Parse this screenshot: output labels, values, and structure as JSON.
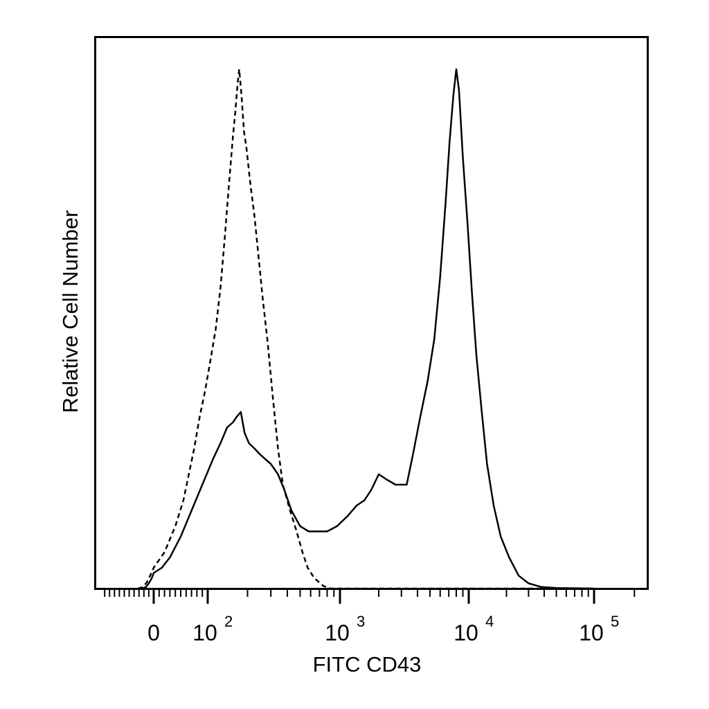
{
  "chart_data": {
    "type": "line",
    "title": "",
    "xlabel": "FITC CD43",
    "ylabel": "Relative Cell Number",
    "x_scale": "biexponential",
    "x_ticks": [
      {
        "value": 0,
        "label": "0"
      },
      {
        "value": 100,
        "label": "10",
        "exp": "2"
      },
      {
        "value": 1000,
        "label": "10",
        "exp": "3"
      },
      {
        "value": 10000,
        "label": "10",
        "exp": "4"
      },
      {
        "value": 100000,
        "label": "10",
        "exp": "5"
      }
    ],
    "y_ticks": [],
    "grid": false,
    "legend": "none",
    "ylim": [
      0,
      100
    ],
    "series": [
      {
        "style": "dashed",
        "points": [
          [
            -80,
            0
          ],
          [
            -55,
            0.3
          ],
          [
            -35,
            1.2
          ],
          [
            -18,
            2.5
          ],
          [
            0,
            4
          ],
          [
            20,
            7
          ],
          [
            40,
            12
          ],
          [
            55,
            17
          ],
          [
            65,
            22
          ],
          [
            75,
            27
          ],
          [
            85,
            33
          ],
          [
            95,
            38
          ],
          [
            105,
            44
          ],
          [
            115,
            50
          ],
          [
            125,
            58
          ],
          [
            135,
            68
          ],
          [
            145,
            78
          ],
          [
            155,
            87
          ],
          [
            162,
            92
          ],
          [
            168,
            97
          ],
          [
            173,
            100
          ],
          [
            180,
            95
          ],
          [
            188,
            88
          ],
          [
            196,
            85
          ],
          [
            210,
            78
          ],
          [
            225,
            72
          ],
          [
            240,
            65
          ],
          [
            260,
            56
          ],
          [
            285,
            47
          ],
          [
            310,
            37
          ],
          [
            340,
            27
          ],
          [
            370,
            20
          ],
          [
            420,
            15
          ],
          [
            470,
            11
          ],
          [
            520,
            7
          ],
          [
            570,
            4
          ],
          [
            640,
            2
          ],
          [
            750,
            0.5
          ],
          [
            850,
            0
          ],
          [
            100000,
            0
          ]
        ]
      },
      {
        "style": "solid",
        "points": [
          [
            -60,
            0
          ],
          [
            -40,
            0.3
          ],
          [
            -25,
            1
          ],
          [
            -10,
            2
          ],
          [
            0,
            3
          ],
          [
            15,
            4
          ],
          [
            30,
            6
          ],
          [
            50,
            10
          ],
          [
            70,
            15
          ],
          [
            90,
            20
          ],
          [
            110,
            25
          ],
          [
            125,
            28
          ],
          [
            140,
            31
          ],
          [
            155,
            32
          ],
          [
            165,
            33
          ],
          [
            178,
            34
          ],
          [
            190,
            30
          ],
          [
            205,
            28
          ],
          [
            225,
            27
          ],
          [
            245,
            26
          ],
          [
            270,
            25
          ],
          [
            300,
            24
          ],
          [
            340,
            22
          ],
          [
            380,
            19
          ],
          [
            430,
            15
          ],
          [
            500,
            12
          ],
          [
            580,
            11
          ],
          [
            680,
            11
          ],
          [
            800,
            11
          ],
          [
            950,
            12
          ],
          [
            1150,
            14
          ],
          [
            1350,
            16
          ],
          [
            1550,
            17
          ],
          [
            1750,
            19
          ],
          [
            2000,
            22
          ],
          [
            2300,
            21
          ],
          [
            2700,
            20
          ],
          [
            3300,
            20
          ],
          [
            3700,
            26
          ],
          [
            4200,
            33
          ],
          [
            4800,
            40
          ],
          [
            5400,
            48
          ],
          [
            6000,
            60
          ],
          [
            6600,
            74
          ],
          [
            7100,
            86
          ],
          [
            7600,
            95
          ],
          [
            8000,
            100
          ],
          [
            8400,
            96
          ],
          [
            9000,
            83
          ],
          [
            9800,
            70
          ],
          [
            10600,
            57
          ],
          [
            11500,
            45
          ],
          [
            12700,
            34
          ],
          [
            14000,
            24
          ],
          [
            15800,
            16
          ],
          [
            18000,
            10
          ],
          [
            21000,
            6
          ],
          [
            25000,
            2.5
          ],
          [
            30000,
            1
          ],
          [
            38000,
            0.3
          ],
          [
            50000,
            0.1
          ],
          [
            100000,
            0
          ]
        ]
      }
    ]
  }
}
